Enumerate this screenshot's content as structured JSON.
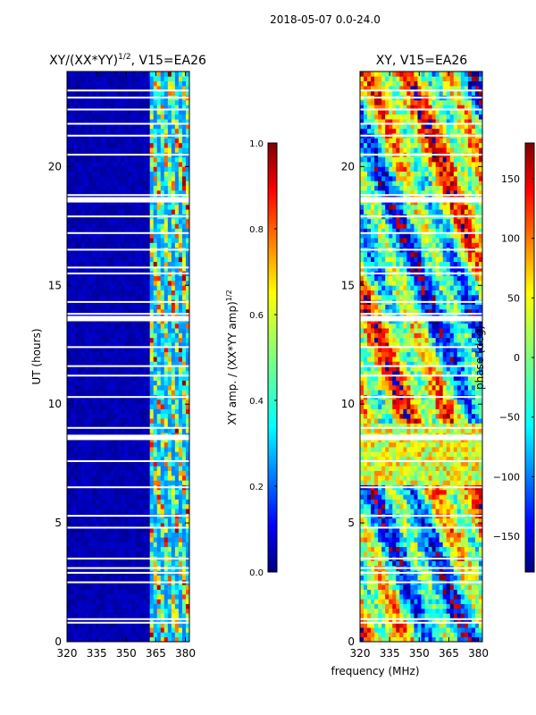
{
  "figure_title": "2018-05-07 0.0-24.0",
  "shared_xlabel": "frequency (MHz)",
  "chart_data": [
    {
      "type": "heatmap",
      "title_main": "XY/(XX*YY)",
      "title_sup": "1/2",
      "title_tail": ", V15=EA26",
      "ylabel": "UT (hours)",
      "xlim": [
        320,
        382
      ],
      "ylim": [
        0,
        24
      ],
      "xticks": [
        320,
        335,
        350,
        365,
        380
      ],
      "yticks": [
        0,
        5,
        10,
        15,
        20
      ],
      "colorbar": {
        "label_main": "XY amp. / (XX*YY amp)",
        "label_sup": "1/2",
        "range": [
          0.0,
          1.0
        ],
        "ticks": [
          "0.0",
          "0.2",
          "0.4",
          "0.6",
          "0.8",
          "1.0"
        ],
        "colormap": "jet"
      },
      "notes": "Low values (dark blue) below ~362 MHz; bright channels (0.4-1.0) between ~362 and ~380 MHz"
    },
    {
      "type": "heatmap",
      "title_main": "XY, V15=EA26",
      "ylabel": "",
      "xlim": [
        320,
        382
      ],
      "ylim": [
        0,
        24
      ],
      "xticks": [
        320,
        335,
        350,
        365,
        380
      ],
      "yticks": [
        0,
        5,
        10,
        15,
        20
      ],
      "colorbar": {
        "label_main": "phase (deg)",
        "range": [
          -180,
          180
        ],
        "ticks": [
          "-150",
          "-100",
          "-50",
          "0",
          "50",
          "100",
          "150"
        ],
        "colormap": "jet"
      },
      "notes": "Phase varies across the full -180 to 180 range with frequency-dependent structure"
    }
  ],
  "data_gaps_hours": [
    0.8,
    0.95,
    2.5,
    2.9,
    3.1,
    3.5,
    4.8,
    5.3,
    6.5,
    7.6,
    8.6,
    9.0,
    10.3,
    11.2,
    11.6,
    12.4,
    13.6,
    13.8,
    14.3,
    15.5,
    15.75,
    16.5,
    17.2,
    17.9,
    18.6,
    18.8,
    20.5,
    21.3,
    21.8,
    22.4,
    22.9,
    23.2
  ]
}
